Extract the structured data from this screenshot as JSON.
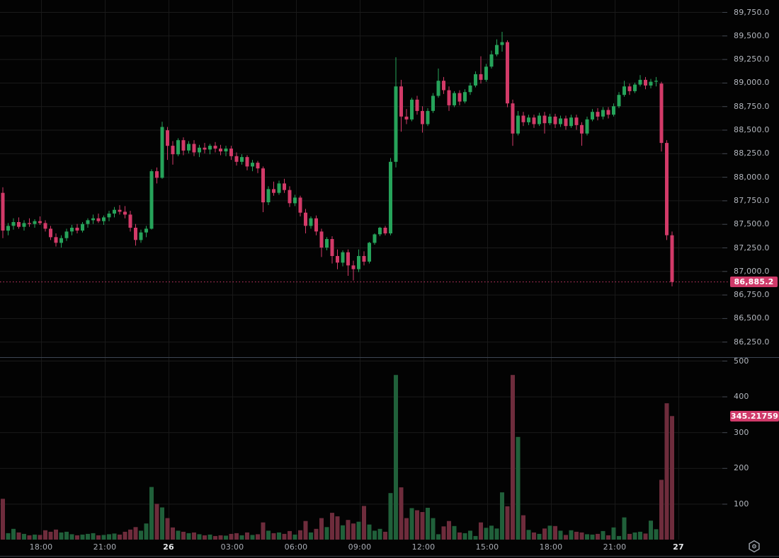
{
  "badges": {
    "price": "86,885.2",
    "volume": "345.21759"
  },
  "colors": {
    "background": "#030303",
    "candle_up": "#26a35a",
    "candle_down": "#d23a68",
    "volume_up": "#20603a",
    "volume_down": "#6e2c3c",
    "grid": "#1b1b1b",
    "grid_vertical": "#181818",
    "axis_tick": "#41464f",
    "pane_separator": "#3d4654",
    "axis_bottom_border": "#3a3f48",
    "axis_text": "#b4b8bf",
    "axis_text_time": "#a9adb5",
    "axis_text_day": "#e9ebed",
    "badge_bg": "#d03a6a",
    "badge_text": "#ffffff",
    "current_price_line": "#d03a6a",
    "icon": "#9aa0a8"
  },
  "chart_data": {
    "type": "candlestick+volume",
    "legend_position": "none",
    "grid": true,
    "price_ticks": [
      [
        89750,
        "89,750.0"
      ],
      [
        89500,
        "89,500.0"
      ],
      [
        89250,
        "89,250.0"
      ],
      [
        89000,
        "89,000.0"
      ],
      [
        88750,
        "88,750.0"
      ],
      [
        88500,
        "88,500.0"
      ],
      [
        88250,
        "88,250.0"
      ],
      [
        88000,
        "88,000.0"
      ],
      [
        87750,
        "87,750.0"
      ],
      [
        87500,
        "87,500.0"
      ],
      [
        87250,
        "87,250.0"
      ],
      [
        87000,
        "87,000.0"
      ],
      [
        86750,
        "86,750.0"
      ],
      [
        86500,
        "86,500.0"
      ],
      [
        86250,
        "86,250.0"
      ]
    ],
    "volume_ticks": [
      [
        500,
        "500"
      ],
      [
        400,
        "400"
      ],
      [
        300,
        "300"
      ],
      [
        200,
        "200"
      ],
      [
        100,
        "100"
      ]
    ],
    "time_ticks": [
      {
        "label": "18:00",
        "day": false
      },
      {
        "label": "21:00",
        "day": false
      },
      {
        "label": "26",
        "day": true
      },
      {
        "label": "03:00",
        "day": false
      },
      {
        "label": "06:00",
        "day": false
      },
      {
        "label": "09:00",
        "day": false
      },
      {
        "label": "12:00",
        "day": false
      },
      {
        "label": "15:00",
        "day": false
      },
      {
        "label": "18:00",
        "day": false
      },
      {
        "label": "21:00",
        "day": false
      },
      {
        "label": "27",
        "day": true
      }
    ],
    "price_range_visible": [
      86086,
      89878
    ],
    "volume_range_visible": [
      0,
      510
    ],
    "current_price": 86885.2,
    "current_volume": 345.21759,
    "candles_ohlcv": [
      [
        87830,
        87890,
        87350,
        87430,
        114
      ],
      [
        87430,
        87510,
        87380,
        87480,
        18
      ],
      [
        87480,
        87560,
        87440,
        87520,
        30
      ],
      [
        87520,
        87570,
        87450,
        87470,
        20
      ],
      [
        87470,
        87540,
        87430,
        87510,
        16
      ],
      [
        87510,
        87560,
        87470,
        87500,
        12
      ],
      [
        87500,
        87550,
        87460,
        87530,
        14
      ],
      [
        87530,
        87580,
        87490,
        87510,
        13
      ],
      [
        87510,
        87540,
        87420,
        87450,
        26
      ],
      [
        87450,
        87480,
        87330,
        87360,
        22
      ],
      [
        87360,
        87400,
        87260,
        87300,
        28
      ],
      [
        87300,
        87380,
        87250,
        87350,
        20
      ],
      [
        87350,
        87450,
        87320,
        87420,
        22
      ],
      [
        87420,
        87490,
        87380,
        87460,
        15
      ],
      [
        87460,
        87500,
        87400,
        87430,
        12
      ],
      [
        87430,
        87520,
        87410,
        87500,
        14
      ],
      [
        87500,
        87560,
        87460,
        87540,
        16
      ],
      [
        87540,
        87600,
        87500,
        87560,
        18
      ],
      [
        87560,
        87610,
        87510,
        87530,
        12
      ],
      [
        87530,
        87590,
        87490,
        87570,
        13
      ],
      [
        87570,
        87640,
        87530,
        87610,
        15
      ],
      [
        87610,
        87680,
        87570,
        87650,
        17
      ],
      [
        87650,
        87700,
        87600,
        87630,
        14
      ],
      [
        87630,
        87690,
        87560,
        87600,
        22
      ],
      [
        87600,
        87640,
        87420,
        87460,
        28
      ],
      [
        87460,
        87500,
        87270,
        87330,
        35
      ],
      [
        87330,
        87440,
        87300,
        87410,
        25
      ],
      [
        87410,
        87480,
        87360,
        87450,
        45
      ],
      [
        87450,
        88080,
        87440,
        88060,
        147
      ],
      [
        88060,
        88100,
        87930,
        87990,
        100
      ],
      [
        87990,
        88585,
        87980,
        88530,
        90
      ],
      [
        88495,
        88530,
        88180,
        88330,
        60
      ],
      [
        88330,
        88380,
        88130,
        88240,
        34
      ],
      [
        88240,
        88410,
        88220,
        88390,
        25
      ],
      [
        88390,
        88420,
        88230,
        88280,
        22
      ],
      [
        88280,
        88380,
        88250,
        88350,
        18
      ],
      [
        88350,
        88390,
        88220,
        88260,
        20
      ],
      [
        88260,
        88340,
        88210,
        88310,
        15
      ],
      [
        88310,
        88360,
        88250,
        88290,
        12
      ],
      [
        88290,
        88350,
        88240,
        88330,
        14
      ],
      [
        88330,
        88370,
        88260,
        88300,
        10
      ],
      [
        88300,
        88340,
        88230,
        88270,
        12
      ],
      [
        88270,
        88330,
        88220,
        88300,
        11
      ],
      [
        88300,
        88330,
        88180,
        88220,
        16
      ],
      [
        88220,
        88260,
        88120,
        88160,
        18
      ],
      [
        88160,
        88240,
        88130,
        88210,
        12
      ],
      [
        88210,
        88230,
        88070,
        88110,
        20
      ],
      [
        88110,
        88180,
        88060,
        88150,
        13
      ],
      [
        88150,
        88170,
        88040,
        88090,
        15
      ],
      [
        88090,
        88110,
        87625,
        87730,
        48
      ],
      [
        87730,
        87900,
        87700,
        87870,
        25
      ],
      [
        87870,
        87950,
        87800,
        87830,
        18
      ],
      [
        87830,
        87960,
        87810,
        87930,
        20
      ],
      [
        87930,
        87980,
        87830,
        87860,
        16
      ],
      [
        87860,
        87900,
        87680,
        87720,
        24
      ],
      [
        87720,
        87810,
        87690,
        87780,
        14
      ],
      [
        87780,
        87800,
        87580,
        87620,
        26
      ],
      [
        87620,
        87660,
        87400,
        87480,
        52
      ],
      [
        87480,
        87580,
        87450,
        87560,
        20
      ],
      [
        87560,
        87590,
        87380,
        87420,
        30
      ],
      [
        87420,
        87450,
        87150,
        87250,
        60
      ],
      [
        87250,
        87360,
        87220,
        87340,
        35
      ],
      [
        87340,
        87370,
        87080,
        87160,
        75
      ],
      [
        87160,
        87230,
        87020,
        87090,
        65
      ],
      [
        87090,
        87220,
        87050,
        87200,
        40
      ],
      [
        87200,
        87230,
        86950,
        87060,
        55
      ],
      [
        87060,
        87110,
        86900,
        87020,
        45
      ],
      [
        87020,
        87230,
        86990,
        87160,
        50
      ],
      [
        87160,
        87210,
        87060,
        87100,
        94
      ],
      [
        87100,
        87310,
        87080,
        87300,
        42
      ],
      [
        87300,
        87400,
        87280,
        87390,
        25
      ],
      [
        87390,
        87470,
        87370,
        87460,
        30
      ],
      [
        87460,
        87480,
        87380,
        87400,
        22
      ],
      [
        87400,
        88200,
        87380,
        88160,
        130
      ],
      [
        88160,
        89270,
        88100,
        88960,
        460
      ],
      [
        88960,
        89030,
        88480,
        88640,
        146
      ],
      [
        88640,
        88720,
        88560,
        88610,
        60
      ],
      [
        88610,
        88840,
        88590,
        88820,
        88
      ],
      [
        88820,
        88860,
        88660,
        88700,
        82
      ],
      [
        88700,
        88750,
        88470,
        88560,
        77
      ],
      [
        88560,
        88730,
        88540,
        88700,
        89
      ],
      [
        88700,
        88890,
        88680,
        88860,
        60
      ],
      [
        88860,
        89150,
        88840,
        89020,
        15
      ],
      [
        89020,
        89060,
        88880,
        88920,
        37
      ],
      [
        88920,
        88960,
        88700,
        88760,
        52
      ],
      [
        88760,
        88910,
        88740,
        88890,
        38
      ],
      [
        88890,
        88920,
        88760,
        88800,
        20
      ],
      [
        88800,
        88930,
        88780,
        88900,
        18
      ],
      [
        88900,
        89000,
        88870,
        88970,
        25
      ],
      [
        88970,
        89120,
        88950,
        89090,
        10
      ],
      [
        89090,
        89280,
        88990,
        89030,
        48
      ],
      [
        89030,
        89200,
        89010,
        89170,
        33
      ],
      [
        89170,
        89340,
        89150,
        89300,
        39
      ],
      [
        89300,
        89460,
        89280,
        89400,
        31
      ],
      [
        89400,
        89540,
        89330,
        89430,
        132
      ],
      [
        89430,
        89450,
        88740,
        88780,
        93
      ],
      [
        88780,
        88820,
        88330,
        88460,
        460
      ],
      [
        88460,
        88700,
        88440,
        88650,
        287
      ],
      [
        88650,
        88690,
        88540,
        88580,
        68
      ],
      [
        88580,
        88660,
        88550,
        88630,
        27
      ],
      [
        88630,
        88660,
        88520,
        88560,
        20
      ],
      [
        88560,
        88680,
        88540,
        88650,
        16
      ],
      [
        88650,
        88690,
        88460,
        88570,
        31
      ],
      [
        88570,
        88670,
        88550,
        88640,
        39
      ],
      [
        88640,
        88670,
        88520,
        88560,
        38
      ],
      [
        88560,
        88650,
        88530,
        88620,
        25
      ],
      [
        88620,
        88650,
        88500,
        88540,
        13
      ],
      [
        88540,
        88660,
        88520,
        88630,
        26
      ],
      [
        88630,
        88660,
        88500,
        88550,
        22
      ],
      [
        88550,
        88580,
        88330,
        88460,
        20
      ],
      [
        88460,
        88640,
        88440,
        88610,
        15
      ],
      [
        88610,
        88720,
        88590,
        88690,
        14
      ],
      [
        88690,
        88730,
        88600,
        88640,
        16
      ],
      [
        88640,
        88740,
        88610,
        88710,
        24
      ],
      [
        88710,
        88740,
        88620,
        88660,
        12
      ],
      [
        88660,
        88780,
        88640,
        88750,
        34
      ],
      [
        88750,
        88900,
        88730,
        88870,
        10
      ],
      [
        88870,
        89020,
        88850,
        88960,
        62
      ],
      [
        88960,
        88990,
        88870,
        88910,
        16
      ],
      [
        88910,
        89000,
        88890,
        88980,
        20
      ],
      [
        88980,
        89080,
        88960,
        89030,
        22
      ],
      [
        89030,
        89060,
        88930,
        88970,
        17
      ],
      [
        88970,
        89040,
        88940,
        89010,
        53
      ],
      [
        89010,
        89060,
        88960,
        89020,
        29
      ],
      [
        88990,
        89010,
        88270,
        88360,
        167
      ],
      [
        88360,
        88390,
        87330,
        87380,
        381
      ],
      [
        87380,
        87420,
        86838,
        86885.2,
        345.21759
      ]
    ]
  }
}
